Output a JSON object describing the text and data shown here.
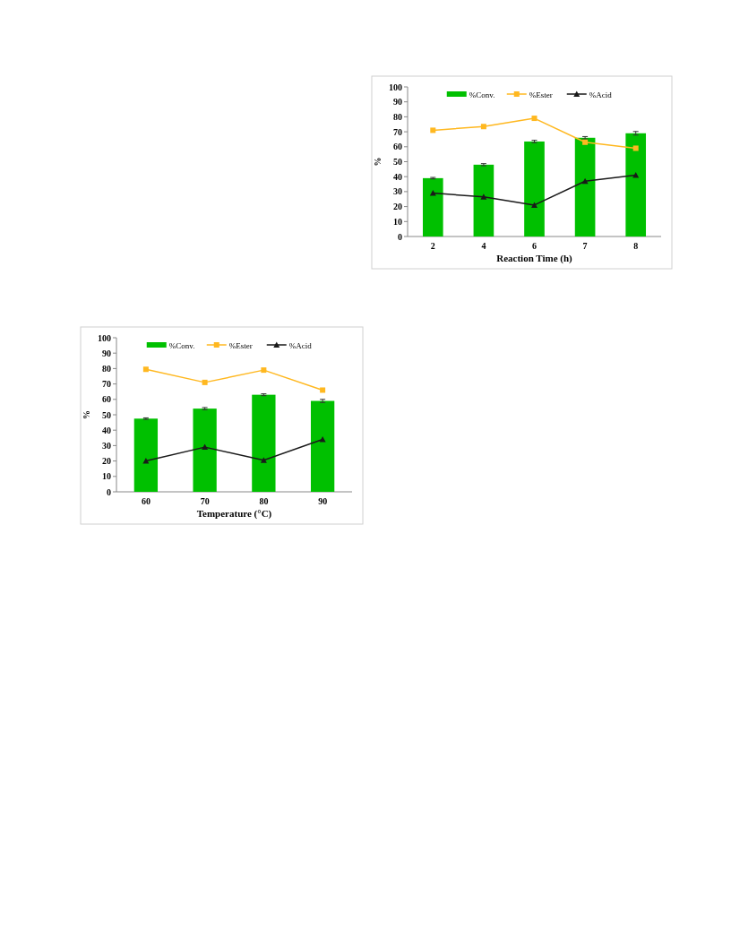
{
  "chart_data": [
    {
      "type": "bar",
      "categories": [
        "2",
        "4",
        "6",
        "7",
        "8"
      ],
      "xlabel": "Reaction Time (h)",
      "ylabel": "%",
      "ylim": [
        0,
        100
      ],
      "yticks": [
        0,
        10,
        20,
        30,
        40,
        50,
        60,
        70,
        80,
        90,
        100
      ],
      "legend": "top",
      "series": [
        {
          "name": "%Conv.",
          "color": "#00c000",
          "values": [
            39,
            48,
            63.5,
            66,
            69
          ],
          "errors": [
            0.5,
            0.7,
            0.8,
            0.8,
            1.2
          ]
        },
        {
          "name": "%Ester",
          "type": "line",
          "color": "#ffb820",
          "marker": "square",
          "values": [
            71,
            73.5,
            79,
            63,
            59
          ]
        },
        {
          "name": "%Acid",
          "type": "line",
          "color": "#1a1a1a",
          "marker": "triangle",
          "values": [
            29,
            26.5,
            21,
            37,
            41
          ]
        }
      ]
    },
    {
      "type": "bar",
      "categories": [
        "60",
        "70",
        "80",
        "90"
      ],
      "xlabel": "Temperature (°C)",
      "ylabel": "%",
      "ylim": [
        0,
        100
      ],
      "yticks": [
        0,
        10,
        20,
        30,
        40,
        50,
        60,
        70,
        80,
        90,
        100
      ],
      "legend": "top",
      "series": [
        {
          "name": "%Conv.",
          "color": "#00c000",
          "values": [
            47.5,
            54,
            63,
            59
          ],
          "errors": [
            0.5,
            0.7,
            0.6,
            1
          ]
        },
        {
          "name": "%Ester",
          "type": "line",
          "color": "#ffb820",
          "marker": "square",
          "values": [
            79.5,
            71,
            79,
            66
          ]
        },
        {
          "name": "%Acid",
          "type": "line",
          "color": "#1a1a1a",
          "marker": "triangle",
          "values": [
            20,
            29,
            20.5,
            34
          ]
        }
      ]
    }
  ]
}
